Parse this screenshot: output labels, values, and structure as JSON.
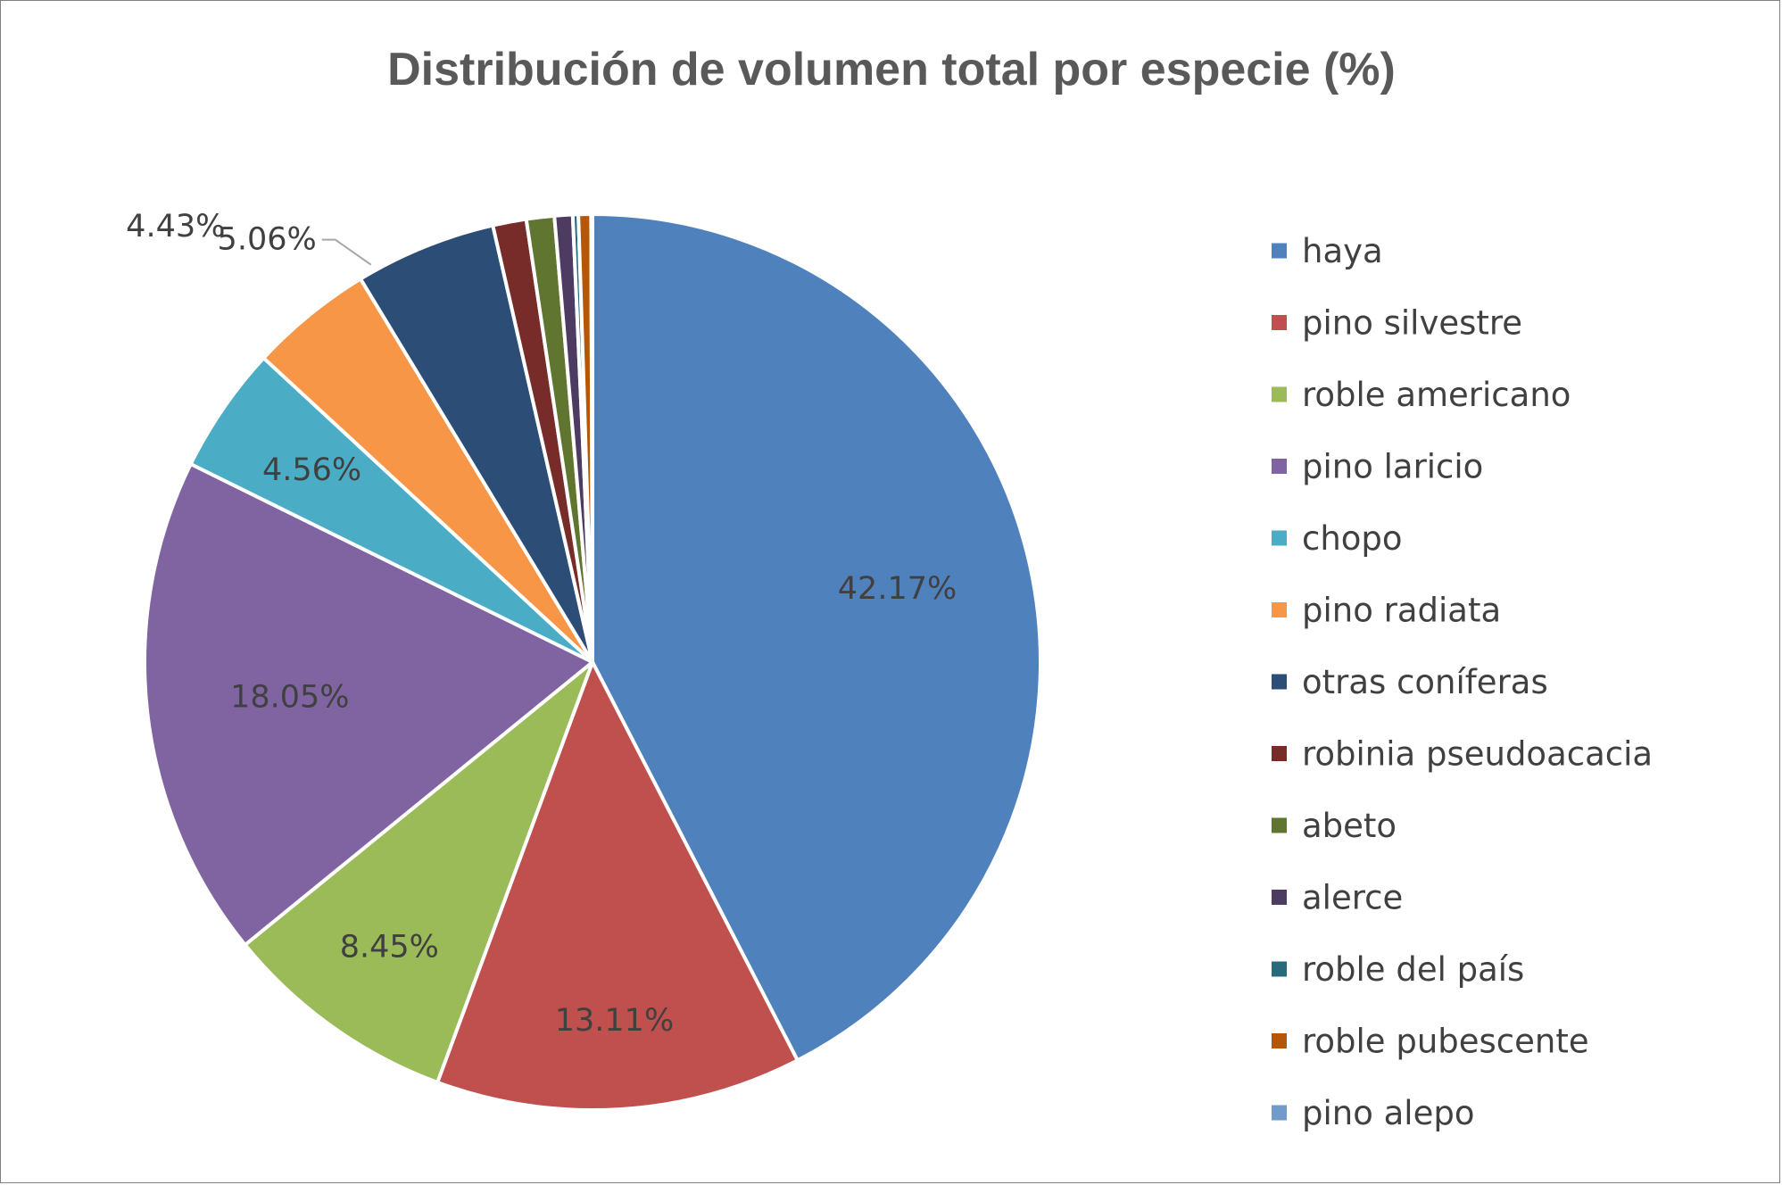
{
  "chart_data": {
    "type": "pie",
    "title": "Distribución de volumen total por especie (%)",
    "legend_position": "right",
    "slices": [
      {
        "name": "haya",
        "value": 42.17,
        "label": "42.17%",
        "color": "#4F81BD"
      },
      {
        "name": "pino silvestre",
        "value": 13.11,
        "label": "13.11%",
        "color": "#C0504D"
      },
      {
        "name": "roble americano",
        "value": 8.45,
        "label": "8.45%",
        "color": "#9BBB59"
      },
      {
        "name": "pino laricio",
        "value": 18.05,
        "label": "18.05%",
        "color": "#8064A2"
      },
      {
        "name": "chopo",
        "value": 4.56,
        "label": "4.56%",
        "color": "#4BACC6"
      },
      {
        "name": "pino radiata",
        "value": 4.43,
        "label": "4.43%",
        "color": "#F79646"
      },
      {
        "name": "otras coníferas",
        "value": 5.06,
        "label": "5.06%",
        "color": "#2C4D75"
      },
      {
        "name": "robinia pseudoacacia",
        "value": 1.2,
        "label": "",
        "color": "#772C2A"
      },
      {
        "name": "abeto",
        "value": 1.0,
        "label": "",
        "color": "#5F7530"
      },
      {
        "name": "alerce",
        "value": 0.65,
        "label": "",
        "color": "#4D3B62"
      },
      {
        "name": "roble del país",
        "value": 0.2,
        "label": "",
        "color": "#276A7C"
      },
      {
        "name": "roble pubescente",
        "value": 0.45,
        "label": "",
        "color": "#B65708"
      },
      {
        "name": "pino alepo",
        "value": 0.05,
        "label": "",
        "color": "#729ACA"
      }
    ]
  }
}
